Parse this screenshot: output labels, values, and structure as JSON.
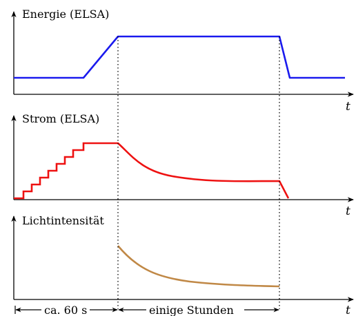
{
  "panels": [
    {
      "id": "energy",
      "ylabel": "Energie (ELSA)",
      "xlabel": "t",
      "color": "#1a1aee"
    },
    {
      "id": "current",
      "ylabel": "Strom (ELSA)",
      "xlabel": "t",
      "color": "#ee1111"
    },
    {
      "id": "light",
      "ylabel": "Lichtintensität",
      "xlabel": "t",
      "color": "#c08846"
    }
  ],
  "bottom_labels": {
    "injection": "ca. 60 s",
    "storage": "einige Stunden"
  }
}
